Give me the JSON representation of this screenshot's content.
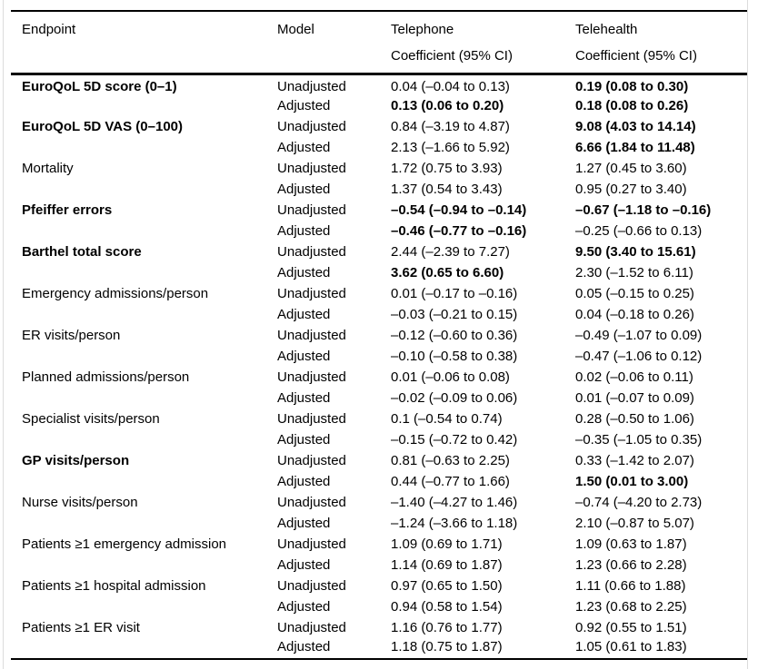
{
  "figure": {
    "type": "paper-table",
    "description_columns": [
      "Endpoint",
      "Model",
      "Telephone Coefficient (95% CI)",
      "Telehealth Coefficient (95% CI)"
    ]
  },
  "colors": {
    "text": "#000000",
    "rule": "#000000",
    "frame_border": "#dcdcdc",
    "background": "#ffffff"
  },
  "table": {
    "columns": {
      "endpoint": "Endpoint",
      "model": "Model",
      "telephone": "Telephone",
      "telehealth": "Telehealth",
      "subheader": "Coefficient (95% CI)"
    },
    "rows": [
      {
        "endpoint": "EuroQoL 5D score (0–1)",
        "endpoint_bold": true,
        "model": "Unadjusted",
        "telephone": "0.04 (–0.04 to 0.13)",
        "telephone_bold": false,
        "telehealth": "0.19 (0.08 to 0.30)",
        "telehealth_bold": true
      },
      {
        "endpoint": "",
        "endpoint_bold": false,
        "model": "Adjusted",
        "telephone": "0.13 (0.06 to 0.20)",
        "telephone_bold": true,
        "telehealth": "0.18 (0.08 to 0.26)",
        "telehealth_bold": true
      },
      {
        "endpoint": "EuroQoL 5D VAS (0–100)",
        "endpoint_bold": true,
        "model": "Unadjusted",
        "telephone": "0.84 (–3.19 to 4.87)",
        "telephone_bold": false,
        "telehealth": "9.08 (4.03 to 14.14)",
        "telehealth_bold": true
      },
      {
        "endpoint": "",
        "endpoint_bold": false,
        "model": "Adjusted",
        "telephone": "2.13 (–1.66 to 5.92)",
        "telephone_bold": false,
        "telehealth": "6.66 (1.84 to 11.48)",
        "telehealth_bold": true
      },
      {
        "endpoint": "Mortality",
        "endpoint_bold": false,
        "model": "Unadjusted",
        "telephone": "1.72 (0.75 to 3.93)",
        "telephone_bold": false,
        "telehealth": "1.27 (0.45 to 3.60)",
        "telehealth_bold": false
      },
      {
        "endpoint": "",
        "endpoint_bold": false,
        "model": "Adjusted",
        "telephone": "1.37 (0.54 to 3.43)",
        "telephone_bold": false,
        "telehealth": "0.95 (0.27 to 3.40)",
        "telehealth_bold": false
      },
      {
        "endpoint": "Pfeiffer errors",
        "endpoint_bold": true,
        "model": "Unadjusted",
        "telephone": "–0.54 (–0.94 to –0.14)",
        "telephone_bold": true,
        "telehealth": "–0.67 (–1.18 to –0.16)",
        "telehealth_bold": true
      },
      {
        "endpoint": "",
        "endpoint_bold": false,
        "model": "Adjusted",
        "telephone": "–0.46 (–0.77 to –0.16)",
        "telephone_bold": true,
        "telehealth": "–0.25 (–0.66 to 0.13)",
        "telehealth_bold": false
      },
      {
        "endpoint": "Barthel total score",
        "endpoint_bold": true,
        "model": "Unadjusted",
        "telephone": "2.44 (–2.39 to 7.27)",
        "telephone_bold": false,
        "telehealth": "9.50 (3.40 to 15.61)",
        "telehealth_bold": true
      },
      {
        "endpoint": "",
        "endpoint_bold": false,
        "model": "Adjusted",
        "telephone": "3.62 (0.65 to 6.60)",
        "telephone_bold": true,
        "telehealth": "2.30 (–1.52 to 6.11)",
        "telehealth_bold": false
      },
      {
        "endpoint": "Emergency admissions/person",
        "endpoint_bold": false,
        "model": "Unadjusted",
        "telephone": "0.01 (–0.17 to –0.16)",
        "telephone_bold": false,
        "telehealth": "0.05 (–0.15 to 0.25)",
        "telehealth_bold": false
      },
      {
        "endpoint": "",
        "endpoint_bold": false,
        "model": "Adjusted",
        "telephone": "–0.03 (–0.21 to 0.15)",
        "telephone_bold": false,
        "telehealth": "0.04 (–0.18 to 0.26)",
        "telehealth_bold": false
      },
      {
        "endpoint": "ER visits/person",
        "endpoint_bold": false,
        "model": "Unadjusted",
        "telephone": "–0.12 (–0.60 to 0.36)",
        "telephone_bold": false,
        "telehealth": "–0.49 (–1.07 to 0.09)",
        "telehealth_bold": false
      },
      {
        "endpoint": "",
        "endpoint_bold": false,
        "model": "Adjusted",
        "telephone": "–0.10 (–0.58 to 0.38)",
        "telephone_bold": false,
        "telehealth": "–0.47 (–1.06 to 0.12)",
        "telehealth_bold": false
      },
      {
        "endpoint": "Planned admissions/person",
        "endpoint_bold": false,
        "model": "Unadjusted",
        "telephone": "0.01 (–0.06 to 0.08)",
        "telephone_bold": false,
        "telehealth": "0.02 (–0.06 to 0.11)",
        "telehealth_bold": false
      },
      {
        "endpoint": "",
        "endpoint_bold": false,
        "model": "Adjusted",
        "telephone": "–0.02 (–0.09 to 0.06)",
        "telephone_bold": false,
        "telehealth": "0.01 (–0.07 to 0.09)",
        "telehealth_bold": false
      },
      {
        "endpoint": "Specialist visits/person",
        "endpoint_bold": false,
        "model": "Unadjusted",
        "telephone": "0.1 (–0.54 to 0.74)",
        "telephone_bold": false,
        "telehealth": "0.28 (–0.50 to 1.06)",
        "telehealth_bold": false
      },
      {
        "endpoint": "",
        "endpoint_bold": false,
        "model": "Adjusted",
        "telephone": "–0.15 (–0.72 to 0.42)",
        "telephone_bold": false,
        "telehealth": "–0.35 (–1.05 to 0.35)",
        "telehealth_bold": false
      },
      {
        "endpoint": "GP visits/person",
        "endpoint_bold": true,
        "model": "Unadjusted",
        "telephone": "0.81 (–0.63 to 2.25)",
        "telephone_bold": false,
        "telehealth": "0.33 (–1.42 to 2.07)",
        "telehealth_bold": false
      },
      {
        "endpoint": "",
        "endpoint_bold": false,
        "model": "Adjusted",
        "telephone": "0.44 (–0.77 to 1.66)",
        "telephone_bold": false,
        "telehealth": "1.50 (0.01 to 3.00)",
        "telehealth_bold": true
      },
      {
        "endpoint": "Nurse visits/person",
        "endpoint_bold": false,
        "model": "Unadjusted",
        "telephone": "–1.40 (–4.27 to 1.46)",
        "telephone_bold": false,
        "telehealth": "–0.74 (–4.20 to 2.73)",
        "telehealth_bold": false
      },
      {
        "endpoint": "",
        "endpoint_bold": false,
        "model": "Adjusted",
        "telephone": "–1.24 (–3.66 to 1.18)",
        "telephone_bold": false,
        "telehealth": "2.10 (–0.87 to 5.07)",
        "telehealth_bold": false
      },
      {
        "endpoint": "Patients ≥1 emergency admission",
        "endpoint_bold": false,
        "model": "Unadjusted",
        "telephone": "1.09 (0.69 to 1.71)",
        "telephone_bold": false,
        "telehealth": "1.09 (0.63 to 1.87)",
        "telehealth_bold": false
      },
      {
        "endpoint": "",
        "endpoint_bold": false,
        "model": "Adjusted",
        "telephone": "1.14 (0.69 to 1.87)",
        "telephone_bold": false,
        "telehealth": "1.23 (0.66 to 2.28)",
        "telehealth_bold": false
      },
      {
        "endpoint": "Patients ≥1 hospital admission",
        "endpoint_bold": false,
        "model": "Unadjusted",
        "telephone": "0.97 (0.65 to 1.50)",
        "telephone_bold": false,
        "telehealth": "1.11 (0.66 to 1.88)",
        "telehealth_bold": false
      },
      {
        "endpoint": "",
        "endpoint_bold": false,
        "model": "Adjusted",
        "telephone": "0.94 (0.58 to 1.54)",
        "telephone_bold": false,
        "telehealth": "1.23 (0.68 to 2.25)",
        "telehealth_bold": false
      },
      {
        "endpoint": "Patients ≥1 ER visit",
        "endpoint_bold": false,
        "model": "Unadjusted",
        "telephone": "1.16 (0.76 to 1.77)",
        "telephone_bold": false,
        "telehealth": "0.92 (0.55 to 1.51)",
        "telehealth_bold": false
      },
      {
        "endpoint": "",
        "endpoint_bold": false,
        "model": "Adjusted",
        "telephone": "1.18 (0.75 to 1.87)",
        "telephone_bold": false,
        "telehealth": "1.05 (0.61 to 1.83)",
        "telehealth_bold": false
      }
    ]
  }
}
